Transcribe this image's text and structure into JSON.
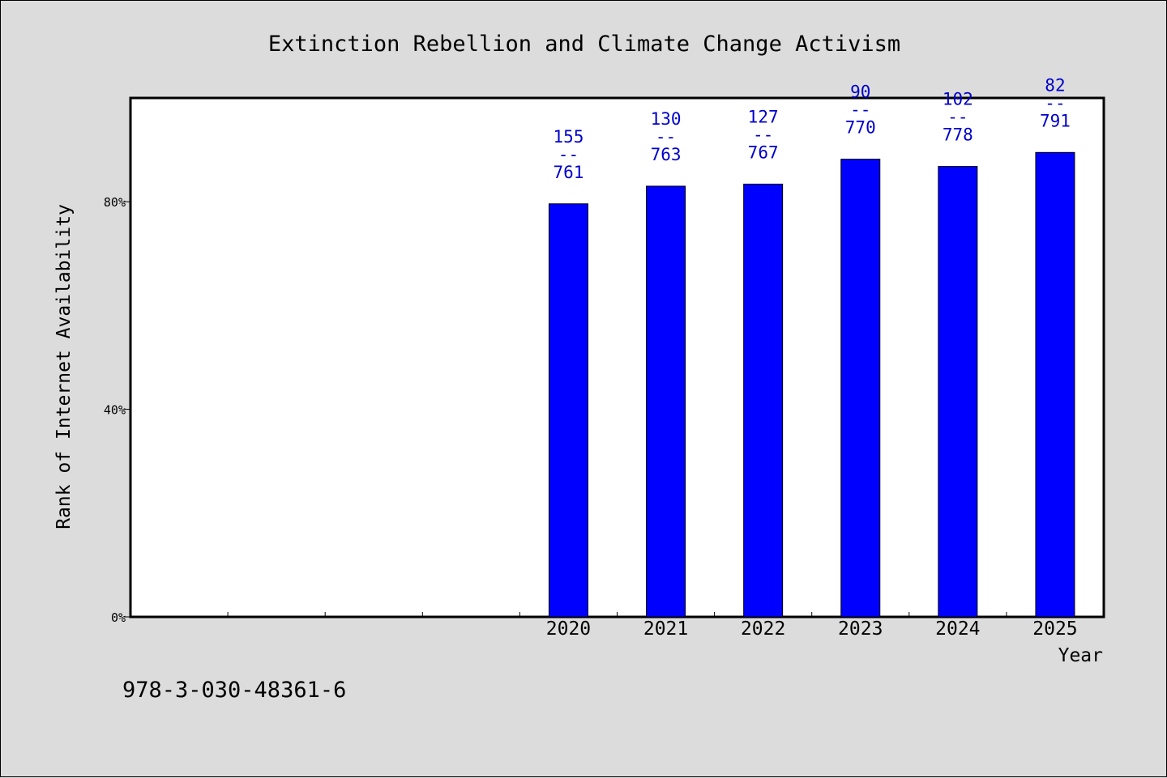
{
  "chart_data": {
    "type": "bar",
    "title": "Extinction Rebellion and Climate Change Activism",
    "xlabel": "Year",
    "ylabel": "Rank of Internet Availability",
    "categories": [
      "",
      "",
      "",
      "",
      "2020",
      "2021",
      "2022",
      "2023",
      "2024",
      "2025"
    ],
    "values": [
      null,
      null,
      null,
      null,
      79.6,
      83.0,
      83.4,
      88.2,
      86.8,
      89.5
    ],
    "bar_labels": [
      null,
      null,
      null,
      null,
      [
        "155",
        "--",
        "761"
      ],
      [
        "130",
        "--",
        "763"
      ],
      [
        "127",
        "--",
        "767"
      ],
      [
        "90",
        "--",
        "770"
      ],
      [
        "102",
        "--",
        "778"
      ],
      [
        "82",
        "--",
        "791"
      ]
    ],
    "yticks": [
      0,
      40,
      80
    ],
    "ytick_labels": [
      "0%",
      "40%",
      "80%"
    ],
    "ylim": [
      0,
      100
    ],
    "grid": false,
    "colors": {
      "bar": "#0000ff",
      "label": "#0000cc",
      "plot_bg": "#ffffff",
      "page_bg": "#dcdcdc"
    }
  },
  "footer": {
    "isbn": "978-3-030-48361-6"
  }
}
